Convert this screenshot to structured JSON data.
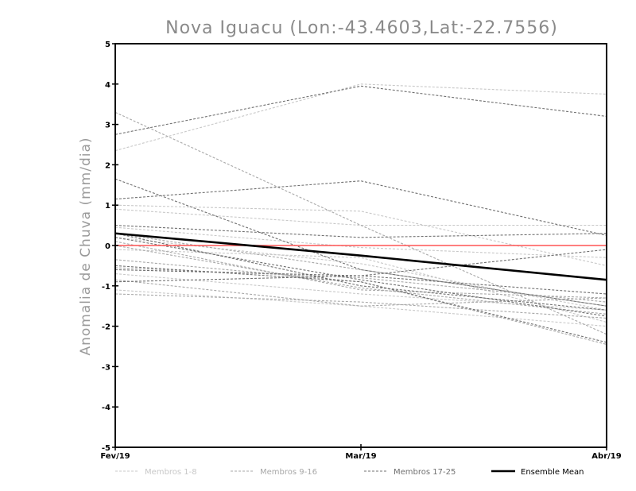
{
  "chart_data": {
    "type": "line",
    "title": "Nova Iguacu (Lon:-43.4603,Lat:-22.7556)",
    "xlabel": "",
    "ylabel": "Anomalia de Chuva (mm/dia)",
    "categories": [
      "Fev/19",
      "Mar/19",
      "Abr/19"
    ],
    "ylim": [
      -5,
      5
    ],
    "yticks": [
      "-5",
      "-4",
      "-3",
      "-2",
      "-1",
      "0",
      "1",
      "2",
      "3",
      "4",
      "5"
    ],
    "grid": false,
    "legend_position": "bottom",
    "zero_line_color": "#ff5555",
    "groups": [
      {
        "name": "Membros 1-8",
        "color": "#c8c8c8",
        "style": "dashed",
        "series": [
          [
            2.35,
            4.0,
            3.75
          ],
          [
            1.0,
            0.85,
            -0.5
          ],
          [
            0.9,
            0.5,
            0.5
          ],
          [
            0.2,
            -0.45,
            -1.6
          ],
          [
            -0.1,
            -0.3,
            -1.9
          ],
          [
            -0.7,
            -1.2,
            -1.6
          ],
          [
            -1.1,
            -1.5,
            -2.0
          ],
          [
            0.45,
            -0.05,
            -0.3
          ]
        ]
      },
      {
        "name": "Membros 9-16",
        "color": "#a8a8a8",
        "style": "dashed",
        "series": [
          [
            3.3,
            0.5,
            -2.2
          ],
          [
            0.3,
            -0.6,
            -1.5
          ],
          [
            -0.55,
            -0.8,
            -1.4
          ],
          [
            -1.2,
            -1.4,
            -1.8
          ],
          [
            0.1,
            -1.1,
            -1.3
          ],
          [
            -0.35,
            -0.9,
            -2.45
          ],
          [
            0.0,
            -1.05,
            -1.7
          ],
          [
            -0.85,
            -1.5,
            -1.3
          ]
        ]
      },
      {
        "name": "Membros 17-25",
        "color": "#707070",
        "style": "dashed",
        "series": [
          [
            2.75,
            3.95,
            3.2
          ],
          [
            1.15,
            1.6,
            0.25
          ],
          [
            1.65,
            -0.6,
            -1.5
          ],
          [
            0.5,
            0.2,
            0.3
          ],
          [
            0.3,
            -1.0,
            -1.6
          ],
          [
            -0.6,
            -0.75,
            -0.1
          ],
          [
            -0.5,
            -0.9,
            -2.4
          ],
          [
            -0.9,
            -0.75,
            -1.2
          ],
          [
            0.2,
            -0.85,
            -1.75
          ]
        ]
      }
    ],
    "ensemble_mean": {
      "name": "Ensemble Mean",
      "color": "#000000",
      "values": [
        0.3,
        -0.25,
        -0.85
      ]
    }
  }
}
